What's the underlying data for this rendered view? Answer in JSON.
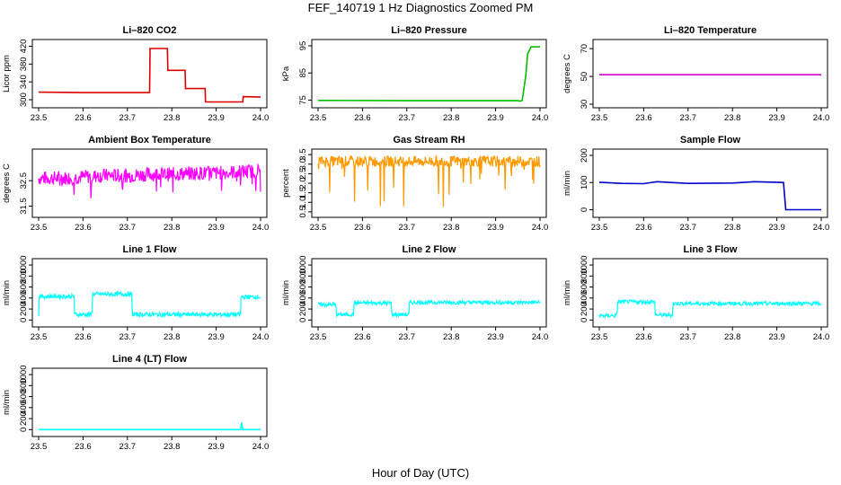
{
  "figure": {
    "title": "FEF_140719  1 Hz Diagnostics Zoomed PM",
    "xlabel": "Hour of Day (UTC)"
  },
  "chart_data": [
    {
      "type": "line",
      "title": "Li–820 CO2",
      "ylabel": "Licor ppm",
      "color": "#dd0000",
      "xlim": [
        23.5,
        24.0
      ],
      "xticks": [
        "23.5",
        "23.6",
        "23.7",
        "23.8",
        "23.9",
        "24.0"
      ],
      "ylim": [
        290,
        427
      ],
      "yticks": [
        "300",
        "340",
        "380",
        "420"
      ],
      "x": [
        23.5,
        23.6,
        23.7,
        23.75,
        23.751,
        23.79,
        23.791,
        23.83,
        23.831,
        23.875,
        23.876,
        23.96,
        23.961,
        24.0
      ],
      "y": [
        317,
        316,
        316,
        316,
        415,
        415,
        366,
        366,
        325,
        325,
        295,
        295,
        307,
        306
      ]
    },
    {
      "type": "line",
      "title": "Li–820 Pressure",
      "ylabel": "kPa",
      "color": "#00bb00",
      "xlim": [
        23.5,
        24.0
      ],
      "xticks": [
        "23.5",
        "23.6",
        "23.7",
        "23.8",
        "23.9",
        "24.0"
      ],
      "ylim": [
        73.5,
        96
      ],
      "yticks": [
        "75",
        "85",
        "95"
      ],
      "x": [
        23.5,
        23.7,
        23.95,
        23.955,
        23.96,
        23.968,
        23.972,
        23.98,
        24.0
      ],
      "y": [
        74.9,
        74.8,
        74.8,
        74.6,
        74.9,
        84,
        92,
        94.6,
        94.6
      ]
    },
    {
      "type": "line",
      "title": "Li–820 Temperature",
      "ylabel": "degrees C",
      "color": "#cc00cc",
      "xlim": [
        23.5,
        24.0
      ],
      "xticks": [
        "23.5",
        "23.6",
        "23.7",
        "23.8",
        "23.9",
        "24.0"
      ],
      "ylim": [
        30,
        74
      ],
      "yticks": [
        "30",
        "50",
        "70"
      ],
      "x": [
        23.5,
        24.0
      ],
      "y": [
        51.2,
        51.2
      ]
    },
    {
      "type": "line",
      "title": "Ambient Box Temperature",
      "ylabel": "degrees C",
      "color": "#ff00ff",
      "xlim": [
        23.5,
        24.0
      ],
      "xticks": [
        "23.5",
        "23.6",
        "23.7",
        "23.8",
        "23.9",
        "24.0"
      ],
      "ylim": [
        31.2,
        33.6
      ],
      "yticks": [
        "31.5",
        "32.5"
      ],
      "x": [
        23.5,
        23.55,
        23.6,
        23.65,
        23.7,
        23.75,
        23.8,
        23.85,
        23.9,
        23.95,
        24.0
      ],
      "y": [
        32.6,
        32.6,
        32.65,
        32.7,
        32.7,
        32.75,
        32.75,
        32.8,
        32.8,
        32.85,
        32.9
      ],
      "noise": 0.28
    },
    {
      "type": "line",
      "title": "Gas Stream RH",
      "ylabel": "percent",
      "color": "#ff9900",
      "xlim": [
        23.5,
        24.0
      ],
      "xticks": [
        "23.5",
        "23.6",
        "23.7",
        "23.8",
        "23.9",
        "24.0"
      ],
      "ylim": [
        0.4,
        3.6
      ],
      "yticks": [
        "0.5",
        "1.0",
        "1.5",
        "2.0",
        "2.5",
        "3.0",
        "3.5"
      ],
      "x": [
        23.5,
        23.6,
        23.7,
        23.8,
        23.9,
        24.0
      ],
      "y": [
        3.15,
        3.15,
        3.15,
        3.15,
        3.15,
        3.15
      ],
      "noise": 0.28
    },
    {
      "type": "line",
      "title": "Sample Flow",
      "ylabel": "ml/min",
      "color": "#0000cc",
      "xlim": [
        23.5,
        24.0
      ],
      "xticks": [
        "23.5",
        "23.6",
        "23.7",
        "23.8",
        "23.9",
        "24.0"
      ],
      "ylim": [
        -15,
        210
      ],
      "yticks": [
        "0",
        "100",
        "200"
      ],
      "x": [
        23.5,
        23.55,
        23.6,
        23.63,
        23.7,
        23.8,
        23.85,
        23.915,
        23.92,
        24.0
      ],
      "y": [
        101,
        97,
        96,
        103,
        97,
        98,
        103,
        100,
        0,
        0
      ]
    },
    {
      "type": "line",
      "title": "Line 1 Flow",
      "ylabel": "ml/min",
      "color": "#00ffff",
      "xlim": [
        23.5,
        24.0
      ],
      "xticks": [
        "23.5",
        "23.6",
        "23.7",
        "23.8",
        "23.9",
        "24.0"
      ],
      "ylim": [
        -60,
        1050
      ],
      "yticks": [
        "0",
        "200",
        "400",
        "600",
        "800",
        "1000"
      ],
      "x": [
        23.5,
        23.501,
        23.58,
        23.581,
        23.62,
        23.621,
        23.71,
        23.711,
        23.955,
        23.956,
        24.0
      ],
      "y": [
        100,
        430,
        430,
        100,
        100,
        470,
        470,
        100,
        100,
        420,
        420
      ],
      "noise": 40
    },
    {
      "type": "line",
      "title": "Line 2 Flow",
      "ylabel": "ml/min",
      "color": "#00ffff",
      "xlim": [
        23.5,
        24.0
      ],
      "xticks": [
        "23.5",
        "23.6",
        "23.7",
        "23.8",
        "23.9",
        "24.0"
      ],
      "ylim": [
        -60,
        1050
      ],
      "yticks": [
        "0",
        "200",
        "400",
        "600",
        "800",
        "1000"
      ],
      "x": [
        23.5,
        23.54,
        23.541,
        23.58,
        23.581,
        23.665,
        23.666,
        23.705,
        23.706,
        24.0
      ],
      "y": [
        280,
        280,
        100,
        100,
        310,
        310,
        100,
        100,
        320,
        320
      ],
      "noise": 35
    },
    {
      "type": "line",
      "title": "Line 3 Flow",
      "ylabel": "ml/min",
      "color": "#00ffff",
      "xlim": [
        23.5,
        24.0
      ],
      "xticks": [
        "23.5",
        "23.6",
        "23.7",
        "23.8",
        "23.9",
        "24.0"
      ],
      "ylim": [
        -60,
        1050
      ],
      "yticks": [
        "0",
        "200",
        "400",
        "600",
        "800",
        "1000"
      ],
      "x": [
        23.5,
        23.54,
        23.541,
        23.625,
        23.626,
        23.665,
        23.666,
        24.0
      ],
      "y": [
        80,
        80,
        330,
        330,
        90,
        90,
        300,
        300
      ],
      "noise": 35
    },
    {
      "type": "line",
      "title": "Line 4 (LT) Flow",
      "ylabel": "ml/min",
      "color": "#00ffff",
      "xlim": [
        23.5,
        24.0
      ],
      "xticks": [
        "23.5",
        "23.6",
        "23.7",
        "23.8",
        "23.9",
        "24.0"
      ],
      "ylim": [
        -60,
        1050
      ],
      "yticks": [
        "0",
        "200",
        "400",
        "600",
        "800",
        "1000"
      ],
      "x": [
        23.5,
        23.955,
        23.957,
        23.96,
        24.0
      ],
      "y": [
        0,
        0,
        130,
        0,
        0
      ]
    }
  ]
}
